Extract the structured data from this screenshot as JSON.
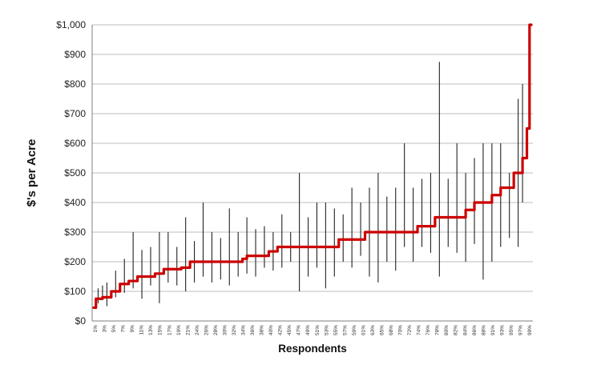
{
  "chart_data": {
    "type": "line",
    "title": "",
    "xlabel": "Respondents",
    "ylabel": "$'s per Acre",
    "ylim": [
      0,
      1000
    ],
    "y_ticks": [
      "$0",
      "$100",
      "$200",
      "$300",
      "$400",
      "$500",
      "$600",
      "$700",
      "$800",
      "$900",
      "$1,000"
    ],
    "x_ticks": [
      "1%",
      "3%",
      "5%",
      "7%",
      "9%",
      "11%",
      "13%",
      "15%",
      "17%",
      "19%",
      "21%",
      "24%",
      "26%",
      "28%",
      "30%",
      "32%",
      "34%",
      "36%",
      "38%",
      "40%",
      "42%",
      "45%",
      "47%",
      "49%",
      "51%",
      "53%",
      "55%",
      "57%",
      "59%",
      "61%",
      "63%",
      "65%",
      "68%",
      "70%",
      "72%",
      "74%",
      "76%",
      "78%",
      "80%",
      "82%",
      "84%",
      "86%",
      "88%",
      "91%",
      "93%",
      "95%",
      "97%",
      "99%"
    ],
    "grid": true,
    "legend": "none",
    "series_color": "#cc0000",
    "range_color": "#222222",
    "median_steps": [
      [
        0,
        45
      ],
      [
        0.5,
        75
      ],
      [
        2,
        80
      ],
      [
        4,
        100
      ],
      [
        6,
        125
      ],
      [
        8,
        135
      ],
      [
        10,
        150
      ],
      [
        14,
        160
      ],
      [
        16,
        175
      ],
      [
        20,
        180
      ],
      [
        22,
        200
      ],
      [
        34,
        210
      ],
      [
        35,
        220
      ],
      [
        40,
        235
      ],
      [
        42,
        250
      ],
      [
        56,
        275
      ],
      [
        62,
        300
      ],
      [
        74,
        320
      ],
      [
        78,
        350
      ],
      [
        85,
        375
      ],
      [
        87,
        400
      ],
      [
        91,
        425
      ],
      [
        93,
        450
      ],
      [
        96,
        500
      ],
      [
        98,
        550
      ],
      [
        99,
        650
      ],
      [
        99.6,
        1000
      ]
    ],
    "range_bars": [
      [
        1,
        60,
        110
      ],
      [
        2,
        70,
        120
      ],
      [
        3,
        50,
        130
      ],
      [
        5,
        80,
        170
      ],
      [
        7,
        95,
        210
      ],
      [
        9,
        110,
        300
      ],
      [
        11,
        75,
        240
      ],
      [
        13,
        120,
        250
      ],
      [
        15,
        60,
        300
      ],
      [
        17,
        130,
        300
      ],
      [
        19,
        120,
        250
      ],
      [
        21,
        100,
        350
      ],
      [
        23,
        130,
        270
      ],
      [
        25,
        150,
        400
      ],
      [
        27,
        130,
        300
      ],
      [
        29,
        140,
        280
      ],
      [
        31,
        120,
        380
      ],
      [
        33,
        150,
        300
      ],
      [
        35,
        160,
        350
      ],
      [
        37,
        150,
        310
      ],
      [
        39,
        180,
        320
      ],
      [
        41,
        170,
        300
      ],
      [
        43,
        180,
        360
      ],
      [
        45,
        200,
        300
      ],
      [
        47,
        100,
        500
      ],
      [
        49,
        150,
        350
      ],
      [
        51,
        180,
        400
      ],
      [
        53,
        110,
        400
      ],
      [
        55,
        150,
        380
      ],
      [
        57,
        200,
        360
      ],
      [
        59,
        180,
        450
      ],
      [
        61,
        220,
        400
      ],
      [
        63,
        150,
        450
      ],
      [
        65,
        130,
        500
      ],
      [
        67,
        200,
        420
      ],
      [
        69,
        170,
        450
      ],
      [
        71,
        250,
        600
      ],
      [
        73,
        200,
        450
      ],
      [
        75,
        250,
        480
      ],
      [
        77,
        230,
        500
      ],
      [
        79,
        150,
        875
      ],
      [
        81,
        250,
        480
      ],
      [
        83,
        230,
        600
      ],
      [
        85,
        200,
        500
      ],
      [
        87,
        260,
        550
      ],
      [
        89,
        140,
        600
      ],
      [
        91,
        200,
        600
      ],
      [
        93,
        250,
        600
      ],
      [
        95,
        280,
        500
      ],
      [
        97,
        250,
        750
      ],
      [
        98,
        400,
        800
      ]
    ]
  }
}
